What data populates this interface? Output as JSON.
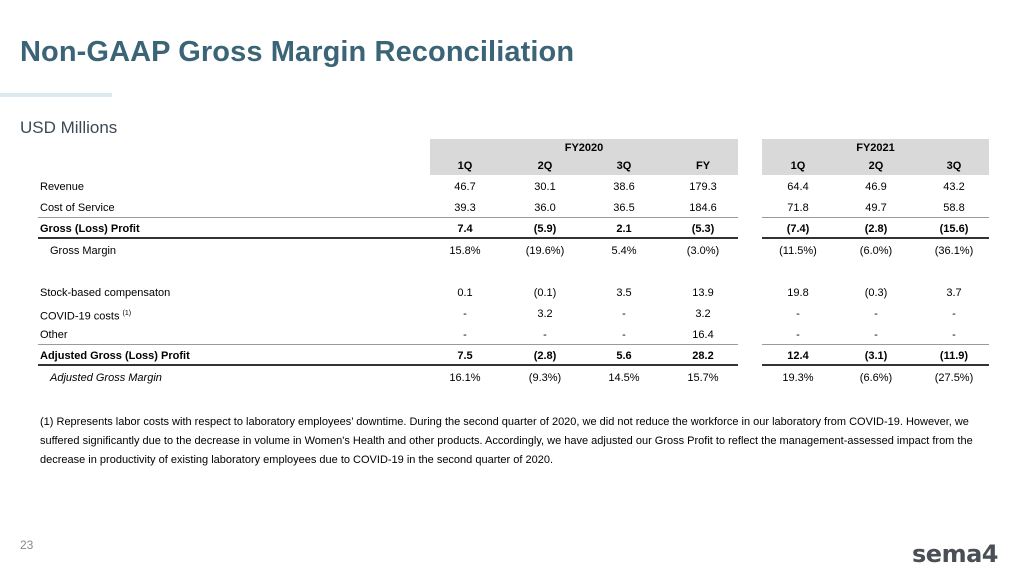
{
  "title": "Non-GAAP Gross Margin Reconciliation",
  "subtitle": "USD Millions",
  "table": {
    "groups": [
      "FY2020",
      "FY2021"
    ],
    "columns": [
      "1Q",
      "2Q",
      "3Q",
      "FY",
      "1Q",
      "2Q",
      "3Q"
    ],
    "rows": [
      {
        "label": "Revenue",
        "values": [
          "46.7",
          "30.1",
          "38.6",
          "179.3",
          "64.4",
          "46.9",
          "43.2"
        ]
      },
      {
        "label": "Cost of Service",
        "values": [
          "39.3",
          "36.0",
          "36.5",
          "184.6",
          "71.8",
          "49.7",
          "58.8"
        ]
      },
      {
        "label": "Gross (Loss) Profit",
        "values": [
          "7.4",
          "(5.9)",
          "2.1",
          "(5.3)",
          "(7.4)",
          "(2.8)",
          "(15.6)"
        ]
      },
      {
        "label": "Gross Margin",
        "values": [
          "15.8%",
          "(19.6%)",
          "5.4%",
          "(3.0%)",
          "(11.5%)",
          "(6.0%)",
          "(36.1%)"
        ]
      },
      {
        "label": "Stock-based compensaton",
        "values": [
          "0.1",
          "(0.1)",
          "3.5",
          "13.9",
          "19.8",
          "(0.3)",
          "3.7"
        ]
      },
      {
        "label": "COVID-19 costs",
        "sup": "(1)",
        "values": [
          "-",
          "3.2",
          "-",
          "3.2",
          "-",
          "-",
          "-"
        ]
      },
      {
        "label": "Other",
        "values": [
          "-",
          "-",
          "-",
          "16.4",
          "-",
          "-",
          "-"
        ]
      },
      {
        "label": "Adjusted Gross (Loss) Profit",
        "values": [
          "7.5",
          "(2.8)",
          "5.6",
          "28.2",
          "12.4",
          "(3.1)",
          "(11.9)"
        ]
      },
      {
        "label": "Adjusted Gross Margin",
        "values": [
          "16.1%",
          "(9.3%)",
          "14.5%",
          "15.7%",
          "19.3%",
          "(6.6%)",
          "(27.5%)"
        ]
      }
    ]
  },
  "footnote": "(1) Represents labor costs with respect to laboratory employees’ downtime. During the second quarter of 2020, we did not reduce the workforce in our laboratory from COVID-19. However, we suffered significantly due to the decrease in volume in Women's Health and other products. Accordingly, we have adjusted our Gross Profit to reflect the management-assessed impact from the decrease in productivity of existing laboratory employees due to COVID-19 in the second quarter of 2020.",
  "page_number": "23",
  "logo_text": "sema4",
  "colors": {
    "title": "#3b6577",
    "header_band": "#d9d9d9"
  }
}
